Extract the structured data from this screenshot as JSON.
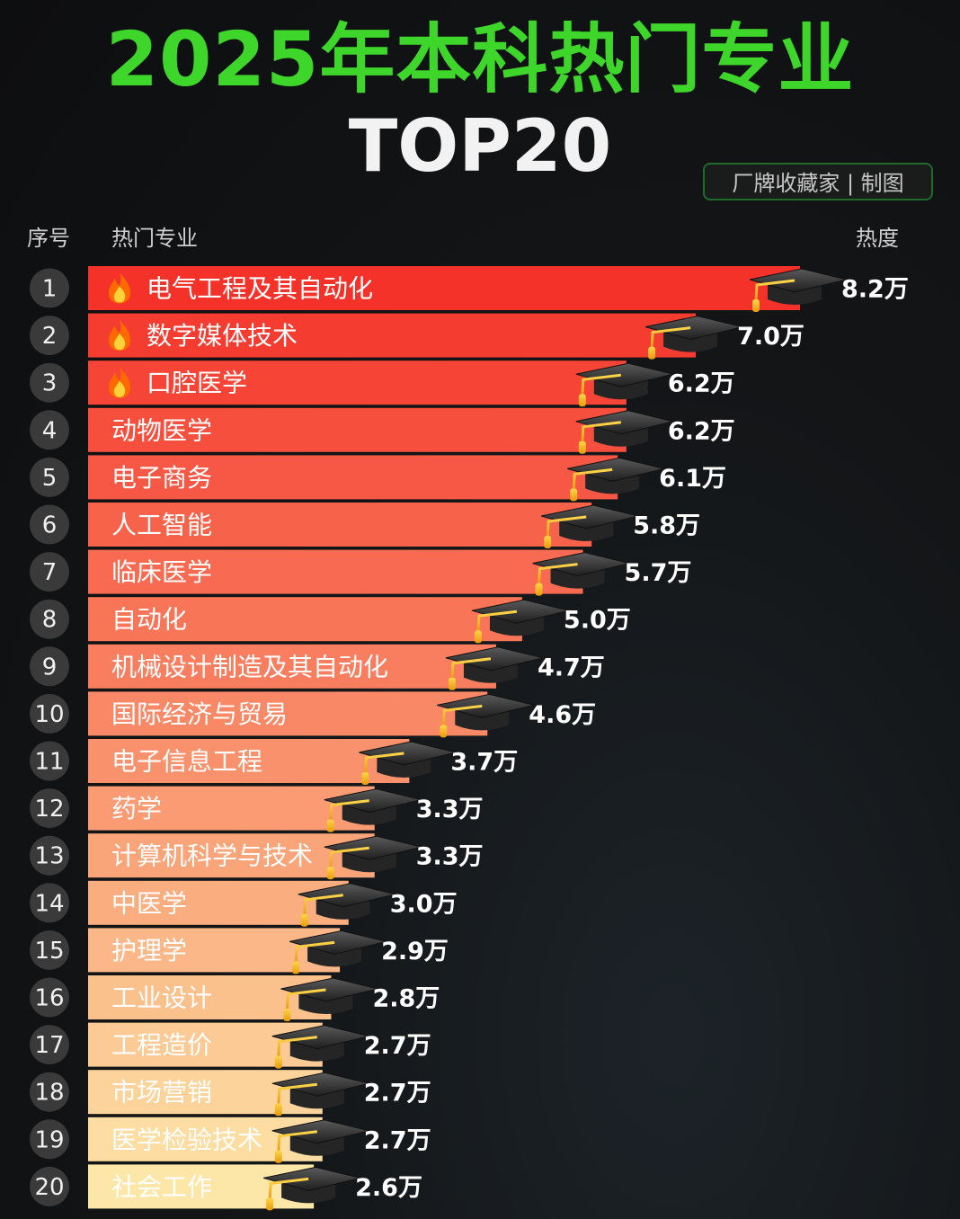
{
  "header": {
    "title": "2025年本科热门专业",
    "subtitle": "TOP20",
    "credit": "厂牌收藏家 | 制图",
    "col_rank": "序号",
    "col_major": "热门专业",
    "col_heat": "热度"
  },
  "icons": {
    "hot": "fire-icon",
    "bar_cap": "graduation-cap-icon"
  },
  "colors": {
    "title": "#3fd62b",
    "bar_top": "#f5322a",
    "bar_bottom": "#fde7a8",
    "rank_circle": "#3a3a3a",
    "value_text": "#ffffff"
  },
  "chart_data": {
    "type": "bar",
    "orientation": "horizontal",
    "unit": "万",
    "categories": [
      "电气工程及其自动化",
      "数字媒体技术",
      "口腔医学",
      "动物医学",
      "电子商务",
      "人工智能",
      "临床医学",
      "自动化",
      "机械设计制造及其自动化",
      "国际经济与贸易",
      "电子信息工程",
      "药学",
      "计算机科学与技术",
      "中医学",
      "护理学",
      "工业设计",
      "工程造价",
      "市场营销",
      "医学检验技术",
      "社会工作"
    ],
    "ranks": [
      "1",
      "2",
      "3",
      "4",
      "5",
      "6",
      "7",
      "8",
      "9",
      "10",
      "11",
      "12",
      "13",
      "14",
      "15",
      "16",
      "17",
      "18",
      "19",
      "20"
    ],
    "values": [
      8.2,
      7.0,
      6.2,
      6.2,
      6.1,
      5.8,
      5.7,
      5.0,
      4.7,
      4.6,
      3.7,
      3.3,
      3.3,
      3.0,
      2.9,
      2.8,
      2.7,
      2.7,
      2.7,
      2.6
    ],
    "value_labels": [
      "8.2万",
      "7.0万",
      "6.2万",
      "6.2万",
      "6.1万",
      "5.8万",
      "5.7万",
      "5.0万",
      "4.7万",
      "4.6万",
      "3.7万",
      "3.3万",
      "3.3万",
      "3.0万",
      "2.9万",
      "2.8万",
      "2.7万",
      "2.7万",
      "2.7万",
      "2.6万"
    ],
    "hot_flags": [
      true,
      true,
      true,
      false,
      false,
      false,
      false,
      false,
      false,
      false,
      false,
      false,
      false,
      false,
      false,
      false,
      false,
      false,
      false,
      false
    ]
  }
}
